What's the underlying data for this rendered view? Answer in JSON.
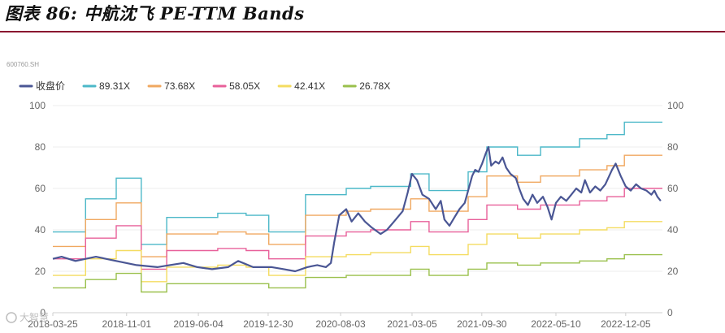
{
  "figure_title": "图表 86: 中航沈飞 PE-TTM Bands",
  "ticker": "600760.SH",
  "watermark": "大智慧",
  "colors": {
    "close": "#4a5694",
    "band_89": "#4cb8c8",
    "band_73": "#f0a860",
    "band_58": "#e8609a",
    "band_42": "#f4dc60",
    "band_26": "#9ac04c",
    "title_rule": "#8a1530"
  },
  "chart_data": {
    "type": "line",
    "title": "",
    "xlabel": "",
    "ylabel": "",
    "ylim": [
      0,
      100
    ],
    "y_ticks": [
      "0",
      "20",
      "40",
      "60",
      "80",
      "100"
    ],
    "x_range": [
      "2018-03-25",
      "2023-03-25"
    ],
    "x_ticks": [
      {
        "date": "2018-03-25",
        "label": "2018-03-25"
      },
      {
        "date": "2018-11-01",
        "label": "2018-11-01"
      },
      {
        "date": "2019-06-04",
        "label": "2019-06-04"
      },
      {
        "date": "2019-12-30",
        "label": "2019-12-30"
      },
      {
        "date": "2020-08-03",
        "label": "2020-08-03"
      },
      {
        "date": "2021-03-05",
        "label": "2021-03-05"
      },
      {
        "date": "2021-09-30",
        "label": "2021-09-30"
      },
      {
        "date": "2022-05-10",
        "label": "2022-05-10"
      },
      {
        "date": "2022-12-05",
        "label": "2022-12-05"
      }
    ],
    "legend_position": "top-left",
    "series": [
      {
        "name": "收盘价",
        "key": "close",
        "points": [
          [
            "2018-03-25",
            26
          ],
          [
            "2018-04-20",
            27
          ],
          [
            "2018-06-01",
            25
          ],
          [
            "2018-08-01",
            27
          ],
          [
            "2018-10-01",
            25
          ],
          [
            "2018-12-01",
            23
          ],
          [
            "2019-02-01",
            22
          ],
          [
            "2019-03-10",
            23
          ],
          [
            "2019-04-20",
            24
          ],
          [
            "2019-06-01",
            22
          ],
          [
            "2019-07-15",
            21
          ],
          [
            "2019-09-01",
            22
          ],
          [
            "2019-10-01",
            25
          ],
          [
            "2019-11-15",
            22
          ],
          [
            "2020-01-10",
            22
          ],
          [
            "2020-02-15",
            21
          ],
          [
            "2020-03-20",
            20
          ],
          [
            "2020-04-25",
            22
          ],
          [
            "2020-05-25",
            23
          ],
          [
            "2020-06-20",
            22
          ],
          [
            "2020-07-05",
            24
          ],
          [
            "2020-07-15",
            34
          ],
          [
            "2020-07-30",
            47
          ],
          [
            "2020-08-20",
            50
          ],
          [
            "2020-09-05",
            44
          ],
          [
            "2020-09-25",
            48
          ],
          [
            "2020-10-15",
            44
          ],
          [
            "2020-11-05",
            41
          ],
          [
            "2020-12-01",
            38
          ],
          [
            "2020-12-20",
            40
          ],
          [
            "2021-01-10",
            44
          ],
          [
            "2021-02-05",
            49
          ],
          [
            "2021-02-20",
            58
          ],
          [
            "2021-03-05",
            67
          ],
          [
            "2021-03-20",
            64
          ],
          [
            "2021-04-05",
            57
          ],
          [
            "2021-04-25",
            55
          ],
          [
            "2021-05-15",
            50
          ],
          [
            "2021-05-30",
            54
          ],
          [
            "2021-06-10",
            45
          ],
          [
            "2021-06-25",
            42
          ],
          [
            "2021-07-10",
            46
          ],
          [
            "2021-07-25",
            50
          ],
          [
            "2021-08-10",
            53
          ],
          [
            "2021-08-20",
            59
          ],
          [
            "2021-09-01",
            66
          ],
          [
            "2021-09-10",
            69
          ],
          [
            "2021-09-20",
            68
          ],
          [
            "2021-10-01",
            72
          ],
          [
            "2021-10-12",
            77
          ],
          [
            "2021-10-20",
            80
          ],
          [
            "2021-10-28",
            71
          ],
          [
            "2021-11-10",
            73
          ],
          [
            "2021-11-20",
            72
          ],
          [
            "2021-12-01",
            75
          ],
          [
            "2021-12-12",
            70
          ],
          [
            "2021-12-25",
            67
          ],
          [
            "2022-01-10",
            65
          ],
          [
            "2022-01-20",
            60
          ],
          [
            "2022-02-01",
            55
          ],
          [
            "2022-02-15",
            52
          ],
          [
            "2022-03-01",
            57
          ],
          [
            "2022-03-15",
            53
          ],
          [
            "2022-04-01",
            56
          ],
          [
            "2022-04-15",
            51
          ],
          [
            "2022-04-27",
            45
          ],
          [
            "2022-05-10",
            53
          ],
          [
            "2022-05-25",
            56
          ],
          [
            "2022-06-10",
            54
          ],
          [
            "2022-06-25",
            57
          ],
          [
            "2022-07-10",
            60
          ],
          [
            "2022-07-25",
            58
          ],
          [
            "2022-08-05",
            64
          ],
          [
            "2022-08-20",
            58
          ],
          [
            "2022-09-05",
            61
          ],
          [
            "2022-09-20",
            59
          ],
          [
            "2022-10-05",
            62
          ],
          [
            "2022-10-25",
            69
          ],
          [
            "2022-11-05",
            72
          ],
          [
            "2022-11-20",
            66
          ],
          [
            "2022-12-05",
            61
          ],
          [
            "2022-12-20",
            59
          ],
          [
            "2023-01-05",
            62
          ],
          [
            "2023-01-20",
            60
          ],
          [
            "2023-02-05",
            59
          ],
          [
            "2023-02-20",
            57
          ],
          [
            "2023-03-01",
            59
          ],
          [
            "2023-03-10",
            56
          ],
          [
            "2023-03-20",
            54
          ]
        ]
      },
      {
        "name": "89.31X",
        "key": "band_89",
        "points": [
          [
            "2018-03-25",
            39
          ],
          [
            "2018-07-01",
            55
          ],
          [
            "2018-10-01",
            65
          ],
          [
            "2018-12-15",
            33
          ],
          [
            "2019-03-01",
            46
          ],
          [
            "2019-08-01",
            48
          ],
          [
            "2019-10-25",
            47
          ],
          [
            "2020-01-01",
            39
          ],
          [
            "2020-04-20",
            57
          ],
          [
            "2020-08-20",
            60
          ],
          [
            "2020-11-01",
            61
          ],
          [
            "2021-03-01",
            67
          ],
          [
            "2021-04-25",
            59
          ],
          [
            "2021-08-20",
            68
          ],
          [
            "2021-10-15",
            80
          ],
          [
            "2022-01-15",
            76
          ],
          [
            "2022-03-25",
            80
          ],
          [
            "2022-07-20",
            84
          ],
          [
            "2022-10-10",
            86
          ],
          [
            "2022-12-01",
            92
          ],
          [
            "2023-03-25",
            92
          ]
        ]
      },
      {
        "name": "73.68X",
        "key": "band_73",
        "points": [
          [
            "2018-03-25",
            32
          ],
          [
            "2018-07-01",
            45
          ],
          [
            "2018-10-01",
            53
          ],
          [
            "2018-12-15",
            27
          ],
          [
            "2019-03-01",
            38
          ],
          [
            "2019-08-01",
            39
          ],
          [
            "2019-10-25",
            38
          ],
          [
            "2020-01-01",
            33
          ],
          [
            "2020-04-20",
            47
          ],
          [
            "2020-08-20",
            49
          ],
          [
            "2020-11-01",
            50
          ],
          [
            "2021-03-01",
            55
          ],
          [
            "2021-04-25",
            49
          ],
          [
            "2021-08-20",
            56
          ],
          [
            "2021-10-15",
            66
          ],
          [
            "2022-01-15",
            63
          ],
          [
            "2022-03-25",
            66
          ],
          [
            "2022-07-20",
            69
          ],
          [
            "2022-10-10",
            71
          ],
          [
            "2022-12-01",
            76
          ],
          [
            "2023-03-25",
            76
          ]
        ]
      },
      {
        "name": "58.05X",
        "key": "band_58",
        "points": [
          [
            "2018-03-25",
            26
          ],
          [
            "2018-07-01",
            36
          ],
          [
            "2018-10-01",
            42
          ],
          [
            "2018-12-15",
            21
          ],
          [
            "2019-03-01",
            30
          ],
          [
            "2019-08-01",
            31
          ],
          [
            "2019-10-25",
            30
          ],
          [
            "2020-01-01",
            26
          ],
          [
            "2020-04-20",
            37
          ],
          [
            "2020-08-20",
            39
          ],
          [
            "2020-11-01",
            40
          ],
          [
            "2021-03-01",
            44
          ],
          [
            "2021-04-25",
            39
          ],
          [
            "2021-08-20",
            45
          ],
          [
            "2021-10-15",
            52
          ],
          [
            "2022-01-15",
            50
          ],
          [
            "2022-03-25",
            52
          ],
          [
            "2022-07-20",
            54
          ],
          [
            "2022-10-10",
            56
          ],
          [
            "2022-12-01",
            60
          ],
          [
            "2023-03-25",
            60
          ]
        ]
      },
      {
        "name": "42.41X",
        "key": "band_42",
        "points": [
          [
            "2018-03-25",
            18
          ],
          [
            "2018-07-01",
            26
          ],
          [
            "2018-10-01",
            30
          ],
          [
            "2018-12-15",
            15
          ],
          [
            "2019-03-01",
            22
          ],
          [
            "2019-08-01",
            23
          ],
          [
            "2019-10-25",
            22
          ],
          [
            "2020-01-01",
            18
          ],
          [
            "2020-04-20",
            27
          ],
          [
            "2020-08-20",
            28
          ],
          [
            "2020-11-01",
            29
          ],
          [
            "2021-03-01",
            32
          ],
          [
            "2021-04-25",
            28
          ],
          [
            "2021-08-20",
            33
          ],
          [
            "2021-10-15",
            38
          ],
          [
            "2022-01-15",
            36
          ],
          [
            "2022-03-25",
            38
          ],
          [
            "2022-07-20",
            40
          ],
          [
            "2022-10-10",
            41
          ],
          [
            "2022-12-01",
            44
          ],
          [
            "2023-03-25",
            44
          ]
        ]
      },
      {
        "name": "26.78X",
        "key": "band_26",
        "points": [
          [
            "2018-03-25",
            12
          ],
          [
            "2018-07-01",
            16
          ],
          [
            "2018-10-01",
            19
          ],
          [
            "2018-12-15",
            10
          ],
          [
            "2019-03-01",
            14
          ],
          [
            "2019-08-01",
            14
          ],
          [
            "2019-10-25",
            14
          ],
          [
            "2020-01-01",
            12
          ],
          [
            "2020-04-20",
            17
          ],
          [
            "2020-08-20",
            18
          ],
          [
            "2020-11-01",
            18
          ],
          [
            "2021-03-01",
            21
          ],
          [
            "2021-04-25",
            18
          ],
          [
            "2021-08-20",
            21
          ],
          [
            "2021-10-15",
            24
          ],
          [
            "2022-01-15",
            23
          ],
          [
            "2022-03-25",
            24
          ],
          [
            "2022-07-20",
            25
          ],
          [
            "2022-10-10",
            26
          ],
          [
            "2022-12-01",
            28
          ],
          [
            "2023-03-25",
            28
          ]
        ]
      }
    ]
  }
}
